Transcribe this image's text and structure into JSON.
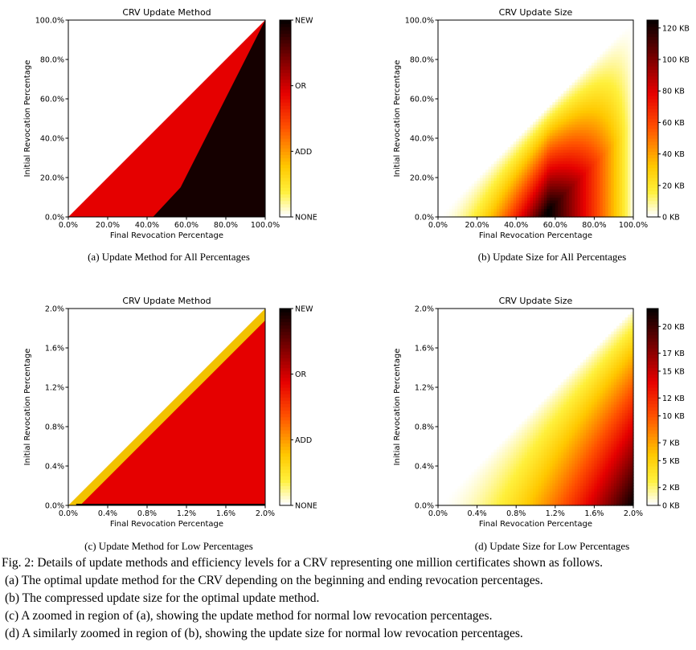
{
  "chart_data": [
    {
      "type": "heatmap",
      "title": "CRV Update Method",
      "xlabel": "Final Revocation Percentage",
      "ylabel": "Initial Revocation Percentage",
      "x_ticks": [
        "0.0%",
        "20.0%",
        "40.0%",
        "60.0%",
        "80.0%",
        "100.0%"
      ],
      "y_ticks": [
        "0.0%",
        "20.0%",
        "40.0%",
        "60.0%",
        "80.0%",
        "100.0%"
      ],
      "xlim": [
        0,
        100
      ],
      "ylim": [
        0,
        100
      ],
      "colorbar_ticks": [
        "NONE",
        "ADD",
        "OR",
        "NEW"
      ],
      "regions": [
        {
          "method": "OR",
          "condition": "initial < final and final < boundary"
        },
        {
          "method": "NEW",
          "condition": "final >= boundary"
        }
      ],
      "new_boundary": [
        {
          "initial": 0,
          "final": 43
        },
        {
          "initial": 15,
          "final": 57
        },
        {
          "initial": 100,
          "final": 100
        }
      ],
      "caption": "(a) Update Method for All Percentages"
    },
    {
      "type": "heatmap",
      "title": "CRV Update Size",
      "xlabel": "Final Revocation Percentage",
      "ylabel": "Initial Revocation Percentage",
      "x_ticks": [
        "0.0%",
        "20.0%",
        "40.0%",
        "60.0%",
        "80.0%",
        "100.0%"
      ],
      "y_ticks": [
        "0.0%",
        "20.0%",
        "40.0%",
        "60.0%",
        "80.0%",
        "100.0%"
      ],
      "xlim": [
        0,
        100
      ],
      "ylim": [
        0,
        100
      ],
      "colorbar_ticks": [
        "0 KB",
        "20 KB",
        "40 KB",
        "60 KB",
        "80 KB",
        "100 KB",
        "120 KB"
      ],
      "colorbar_range": [
        0,
        125
      ],
      "peak": {
        "final": 57,
        "initial": 0,
        "size_kb": 125
      },
      "caption": "(b) Update Size for All Percentages"
    },
    {
      "type": "heatmap",
      "title": "CRV Update Method",
      "xlabel": "Final Revocation Percentage",
      "ylabel": "Initial Revocation Percentage",
      "x_ticks": [
        "0.0%",
        "0.4%",
        "0.8%",
        "1.2%",
        "1.6%",
        "2.0%"
      ],
      "y_ticks": [
        "0.0%",
        "0.4%",
        "0.8%",
        "1.2%",
        "1.6%",
        "2.0%"
      ],
      "xlim": [
        0,
        2
      ],
      "ylim": [
        0,
        2
      ],
      "colorbar_ticks": [
        "NONE",
        "ADD",
        "OR",
        "NEW"
      ],
      "add_band_width": 0.12,
      "caption": "(c) Update Method for Low Percentages"
    },
    {
      "type": "heatmap",
      "title": "CRV Update Size",
      "xlabel": "Final Revocation Percentage",
      "ylabel": "Initial Revocation Percentage",
      "x_ticks": [
        "0.0%",
        "0.4%",
        "0.8%",
        "1.2%",
        "1.6%",
        "2.0%"
      ],
      "y_ticks": [
        "0.0%",
        "0.4%",
        "0.8%",
        "1.2%",
        "1.6%",
        "2.0%"
      ],
      "xlim": [
        0,
        2
      ],
      "ylim": [
        0,
        2
      ],
      "colorbar_ticks": [
        "0 KB",
        "2 KB",
        "5 KB",
        "7 KB",
        "10 KB",
        "12 KB",
        "15 KB",
        "17 KB",
        "20 KB"
      ],
      "colorbar_range": [
        0,
        22
      ],
      "peak": {
        "final": 2.0,
        "initial": 0,
        "size_kb": 22
      },
      "caption": "(d) Update Size for Low Percentages"
    }
  ],
  "figure_caption": {
    "main": "Fig. 2: Details of update methods and efficiency levels for a CRV representing one million certificates shown as follows.",
    "items": [
      "(a) The optimal update method for the CRV depending on the beginning and ending revocation percentages.",
      "(b) The compressed update size for the optimal update method.",
      "(c) A zoomed in region of (a), showing the update method for normal low revocation percentages.",
      "(d) A similarly zoomed in region of (b), showing the update size for normal low revocation percentages."
    ]
  }
}
